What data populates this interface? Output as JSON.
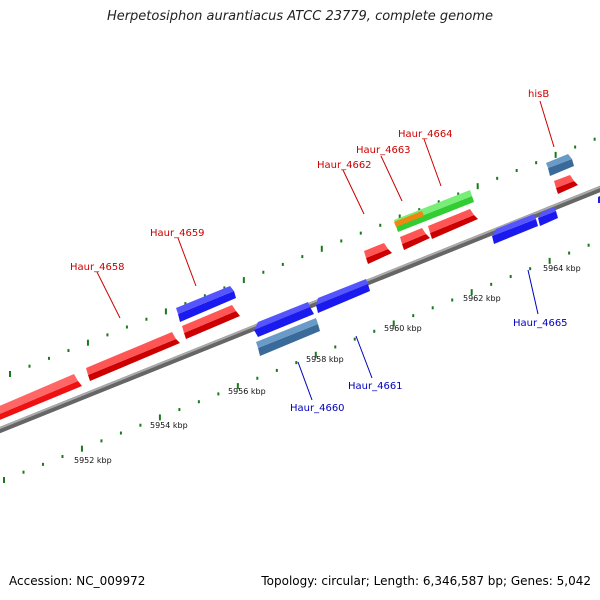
{
  "title": "Herpetosiphon aurantiacus ATCC 23779, complete genome",
  "footer": {
    "accession": "Accession: NC_009972",
    "summary": "Topology: circular; Length: 6,346,587 bp; Genes: 5,042"
  },
  "colors": {
    "forward_gene": "#ee1111",
    "reverse_gene": "#1a1aee",
    "pseudo_reverse": "#4a7fb0",
    "rna_gene": "#33cc33",
    "orange_feature": "#ee8811",
    "backbone": "#888888",
    "tick": "#1a7a1a",
    "forward_label": "#cc0000",
    "reverse_label": "#0000bb"
  },
  "ticks": {
    "scale_labels": [
      "5952 kbp",
      "5954 kbp",
      "5956 kbp",
      "5958 kbp",
      "5960 kbp",
      "5962 kbp",
      "5964 kbp"
    ]
  },
  "genes": [
    {
      "name": "Haur_4658",
      "strand": "forward"
    },
    {
      "name": "Haur_4659",
      "strand": "forward"
    },
    {
      "name": "Haur_4660",
      "strand": "reverse"
    },
    {
      "name": "Haur_4661",
      "strand": "reverse"
    },
    {
      "name": "Haur_4662",
      "strand": "forward"
    },
    {
      "name": "Haur_4663",
      "strand": "forward"
    },
    {
      "name": "Haur_4664",
      "strand": "forward"
    },
    {
      "name": "Haur_4665",
      "strand": "reverse"
    },
    {
      "name": "hisB",
      "strand": "forward"
    }
  ]
}
